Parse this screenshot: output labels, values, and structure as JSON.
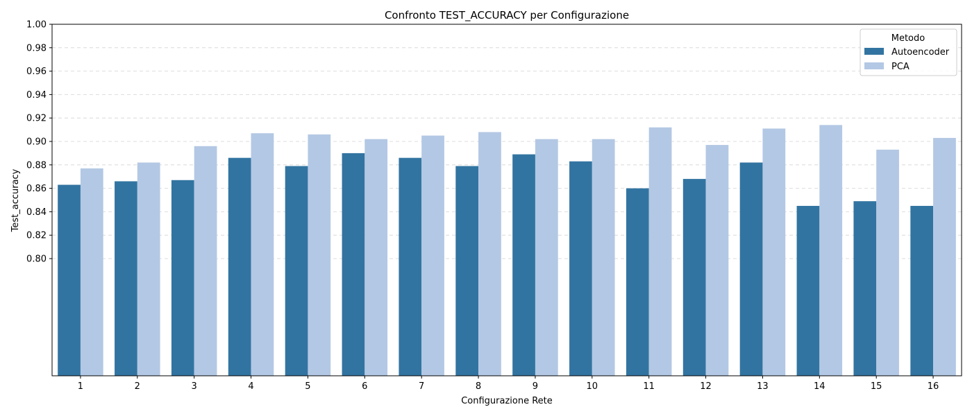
{
  "chart_data": {
    "type": "bar",
    "title": "Confronto TEST_ACCURACY per Configurazione",
    "xlabel": "Configurazione Rete",
    "ylabel": "Test_accuracy",
    "categories": [
      "1",
      "2",
      "3",
      "4",
      "5",
      "6",
      "7",
      "8",
      "9",
      "10",
      "11",
      "12",
      "13",
      "14",
      "15",
      "16"
    ],
    "series": [
      {
        "name": "Autoencoder",
        "color": "#3274a1",
        "values": [
          0.863,
          0.866,
          0.867,
          0.886,
          0.879,
          0.89,
          0.886,
          0.879,
          0.889,
          0.883,
          0.86,
          0.868,
          0.882,
          0.845,
          0.849,
          0.845
        ]
      },
      {
        "name": "PCA",
        "color": "#b3c8e4",
        "values": [
          0.877,
          0.882,
          0.896,
          0.907,
          0.906,
          0.902,
          0.905,
          0.908,
          0.902,
          0.902,
          0.912,
          0.897,
          0.911,
          0.914,
          0.893,
          0.903
        ]
      }
    ],
    "ylim": [
      0.7,
      1.0
    ],
    "yticks": [
      "0.80",
      "0.82",
      "0.84",
      "0.86",
      "0.88",
      "0.90",
      "0.92",
      "0.94",
      "0.96",
      "0.98",
      "1.00"
    ],
    "grid": "y-dashed",
    "legend": {
      "title": "Metodo",
      "placement": "top-right"
    }
  }
}
